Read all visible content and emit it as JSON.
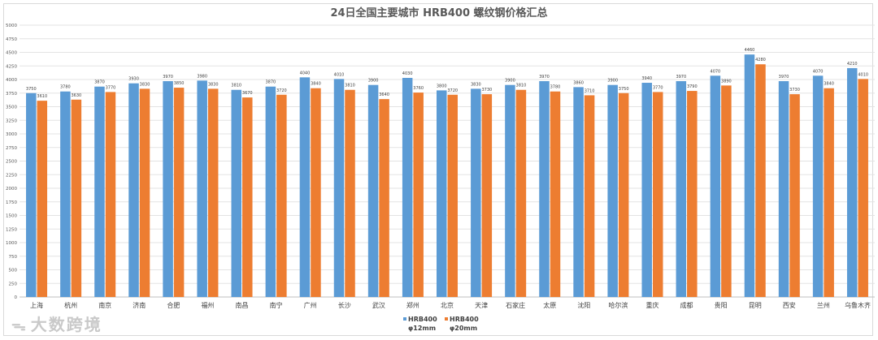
{
  "chart_data": {
    "type": "bar",
    "title": "24日全国主要城市 HRB400 螺纹钢价格汇总",
    "xlabel": "",
    "ylabel": "",
    "ylim": [
      0,
      5000
    ],
    "yticks": [
      0,
      250,
      500,
      750,
      1000,
      1250,
      1500,
      1750,
      2000,
      2250,
      2500,
      2750,
      3000,
      3250,
      3500,
      3750,
      4000,
      4250,
      4500,
      4750,
      5000
    ],
    "grid": true,
    "legend_position": "bottom",
    "categories": [
      "上海",
      "杭州",
      "南京",
      "济南",
      "合肥",
      "福州",
      "南昌",
      "南宁",
      "广州",
      "长沙",
      "武汉",
      "郑州",
      "北京",
      "天津",
      "石家庄",
      "太原",
      "沈阳",
      "哈尔滨",
      "重庆",
      "成都",
      "贵阳",
      "昆明",
      "西安",
      "兰州",
      "乌鲁木齐"
    ],
    "series": [
      {
        "name": "HRB400 φ12mm",
        "legend_line1": "HRB400",
        "legend_line2": "φ12mm",
        "color": "#5b9bd5",
        "values": [
          3750,
          3780,
          3870,
          3930,
          3970,
          3980,
          3810,
          3870,
          4040,
          4010,
          3900,
          4030,
          3800,
          3830,
          3900,
          3970,
          3860,
          3900,
          3940,
          3970,
          4070,
          4460,
          3970,
          4070,
          4210
        ]
      },
      {
        "name": "HRB400 φ20mm",
        "legend_line1": "HRB400",
        "legend_line2": "φ20mm",
        "color": "#ed7d31",
        "values": [
          3610,
          3630,
          3770,
          3830,
          3850,
          3830,
          3670,
          3720,
          3840,
          3810,
          3640,
          3760,
          3720,
          3730,
          3810,
          3780,
          3710,
          3750,
          3770,
          3790,
          3890,
          4280,
          3730,
          3840,
          4010
        ]
      }
    ]
  },
  "watermark": {
    "text": "大数跨境",
    "icon": "wechat-like-logo-icon"
  }
}
